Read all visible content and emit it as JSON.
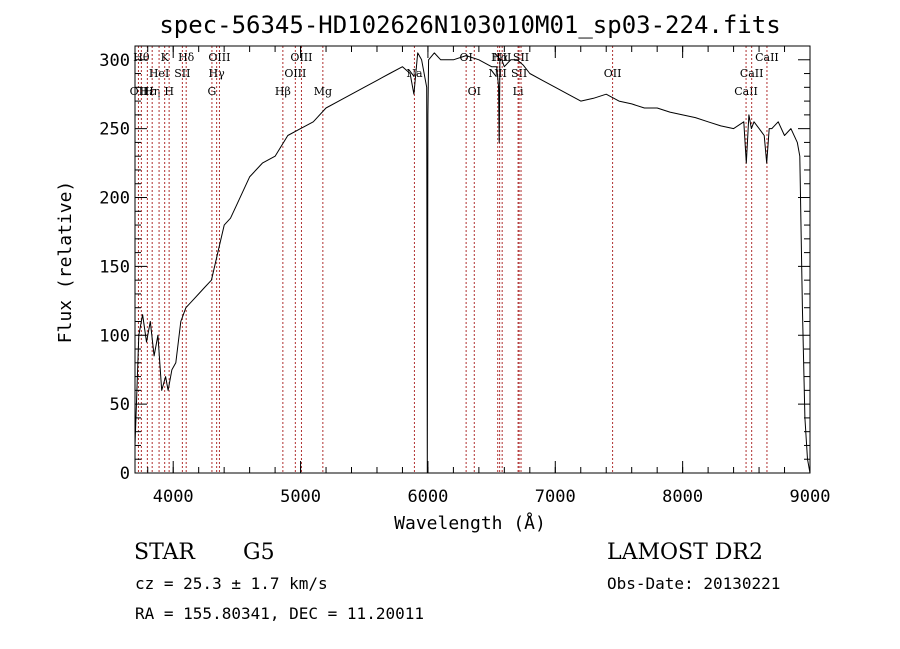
{
  "chart_data": {
    "type": "line",
    "title": "spec-56345-HD102626N103010M01_sp03-224.fits",
    "xlabel": "Wavelength (Å)",
    "ylabel": "Flux (relative)",
    "xlim": [
      3700,
      9000
    ],
    "ylim": [
      0,
      310
    ],
    "xticks": [
      4000,
      5000,
      6000,
      7000,
      8000,
      9000
    ],
    "yticks": [
      0,
      50,
      100,
      150,
      200,
      250,
      300
    ],
    "grid": false,
    "series": [
      {
        "color": "#000000",
        "x": [
          3700,
          3730,
          3760,
          3790,
          3820,
          3850,
          3880,
          3910,
          3940,
          3960,
          3990,
          4020,
          4060,
          4100,
          4150,
          4200,
          4250,
          4300,
          4350,
          4400,
          4450,
          4500,
          4600,
          4700,
          4800,
          4900,
          5000,
          5100,
          5200,
          5300,
          5400,
          5500,
          5600,
          5700,
          5800,
          5860,
          5890,
          5920,
          5950,
          5990,
          5995,
          6000,
          6005,
          6050,
          6100,
          6200,
          6300,
          6400,
          6500,
          6540,
          6555,
          6560,
          6565,
          6580,
          6600,
          6650,
          6700,
          6750,
          6800,
          6900,
          7000,
          7100,
          7200,
          7300,
          7400,
          7500,
          7600,
          7700,
          7800,
          7900,
          8000,
          8100,
          8200,
          8300,
          8400,
          8480,
          8500,
          8520,
          8540,
          8560,
          8600,
          8640,
          8660,
          8680,
          8700,
          8750,
          8800,
          8850,
          8900,
          8920,
          8940,
          8960,
          8980,
          9000
        ],
        "y": [
          20,
          100,
          115,
          95,
          110,
          85,
          100,
          60,
          70,
          60,
          75,
          80,
          110,
          120,
          125,
          130,
          135,
          140,
          160,
          180,
          185,
          195,
          215,
          225,
          230,
          245,
          250,
          255,
          265,
          270,
          275,
          280,
          285,
          290,
          295,
          290,
          275,
          305,
          300,
          280,
          0,
          260,
          300,
          305,
          300,
          300,
          303,
          300,
          295,
          295,
          280,
          240,
          300,
          300,
          295,
          300,
          300,
          296,
          290,
          285,
          280,
          275,
          270,
          272,
          275,
          270,
          268,
          265,
          265,
          262,
          260,
          258,
          255,
          252,
          250,
          255,
          225,
          260,
          250,
          255,
          250,
          245,
          225,
          250,
          250,
          255,
          245,
          250,
          240,
          230,
          120,
          40,
          10,
          0
        ]
      }
    ],
    "line_markers": [
      {
        "wavelength": 3727,
        "label": "OII",
        "row": 3
      },
      {
        "wavelength": 3750,
        "label": "Hθ",
        "row": 1
      },
      {
        "wavelength": 3797,
        "label": "Hε",
        "row": 3
      },
      {
        "wavelength": 3835,
        "label": "Hη",
        "row": 3
      },
      {
        "wavelength": 3889,
        "label": "HeI",
        "row": 2
      },
      {
        "wavelength": 3933,
        "label": "K",
        "row": 1
      },
      {
        "wavelength": 3968,
        "label": "H",
        "row": 3
      },
      {
        "wavelength": 4072,
        "label": "SII",
        "row": 2
      },
      {
        "wavelength": 4102,
        "label": "Hδ",
        "row": 1
      },
      {
        "wavelength": 4304,
        "label": "G",
        "row": 3
      },
      {
        "wavelength": 4341,
        "label": "Hγ",
        "row": 2
      },
      {
        "wavelength": 4363,
        "label": "OIII",
        "row": 1
      },
      {
        "wavelength": 4861,
        "label": "Hβ",
        "row": 3
      },
      {
        "wavelength": 4959,
        "label": "OIII",
        "row": 2
      },
      {
        "wavelength": 5007,
        "label": "OIII",
        "row": 1
      },
      {
        "wavelength": 5175,
        "label": "Mg",
        "row": 3
      },
      {
        "wavelength": 5894,
        "label": "Na",
        "row": 2
      },
      {
        "wavelength": 6300,
        "label": "OI",
        "row": 1
      },
      {
        "wavelength": 6364,
        "label": "OI",
        "row": 3
      },
      {
        "wavelength": 6548,
        "label": "NII",
        "row": 2
      },
      {
        "wavelength": 6563,
        "label": "Hα",
        "row": 1
      },
      {
        "wavelength": 6583,
        "label": "NII",
        "row": 1
      },
      {
        "wavelength": 6708,
        "label": "Li",
        "row": 3
      },
      {
        "wavelength": 6716,
        "label": "SII",
        "row": 2
      },
      {
        "wavelength": 6731,
        "label": "SII",
        "row": 1
      },
      {
        "wavelength": 7450,
        "label": "OII",
        "row": 2
      },
      {
        "wavelength": 8498,
        "label": "CaII",
        "row": 3
      },
      {
        "wavelength": 8542,
        "label": "CaII",
        "row": 2
      },
      {
        "wavelength": 8662,
        "label": "CaII",
        "row": 1
      }
    ]
  },
  "info": {
    "object_class": "STAR",
    "subclass": "G5",
    "survey": "LAMOST DR2",
    "redshift": "cz = 25.3 ± 1.7 km/s",
    "obs_date": "Obs-Date: 20130221",
    "coords": "RA = 155.80341, DEC =  11.20011"
  },
  "colors": {
    "line_marker": "#b03030",
    "spectrum": "#000000"
  }
}
